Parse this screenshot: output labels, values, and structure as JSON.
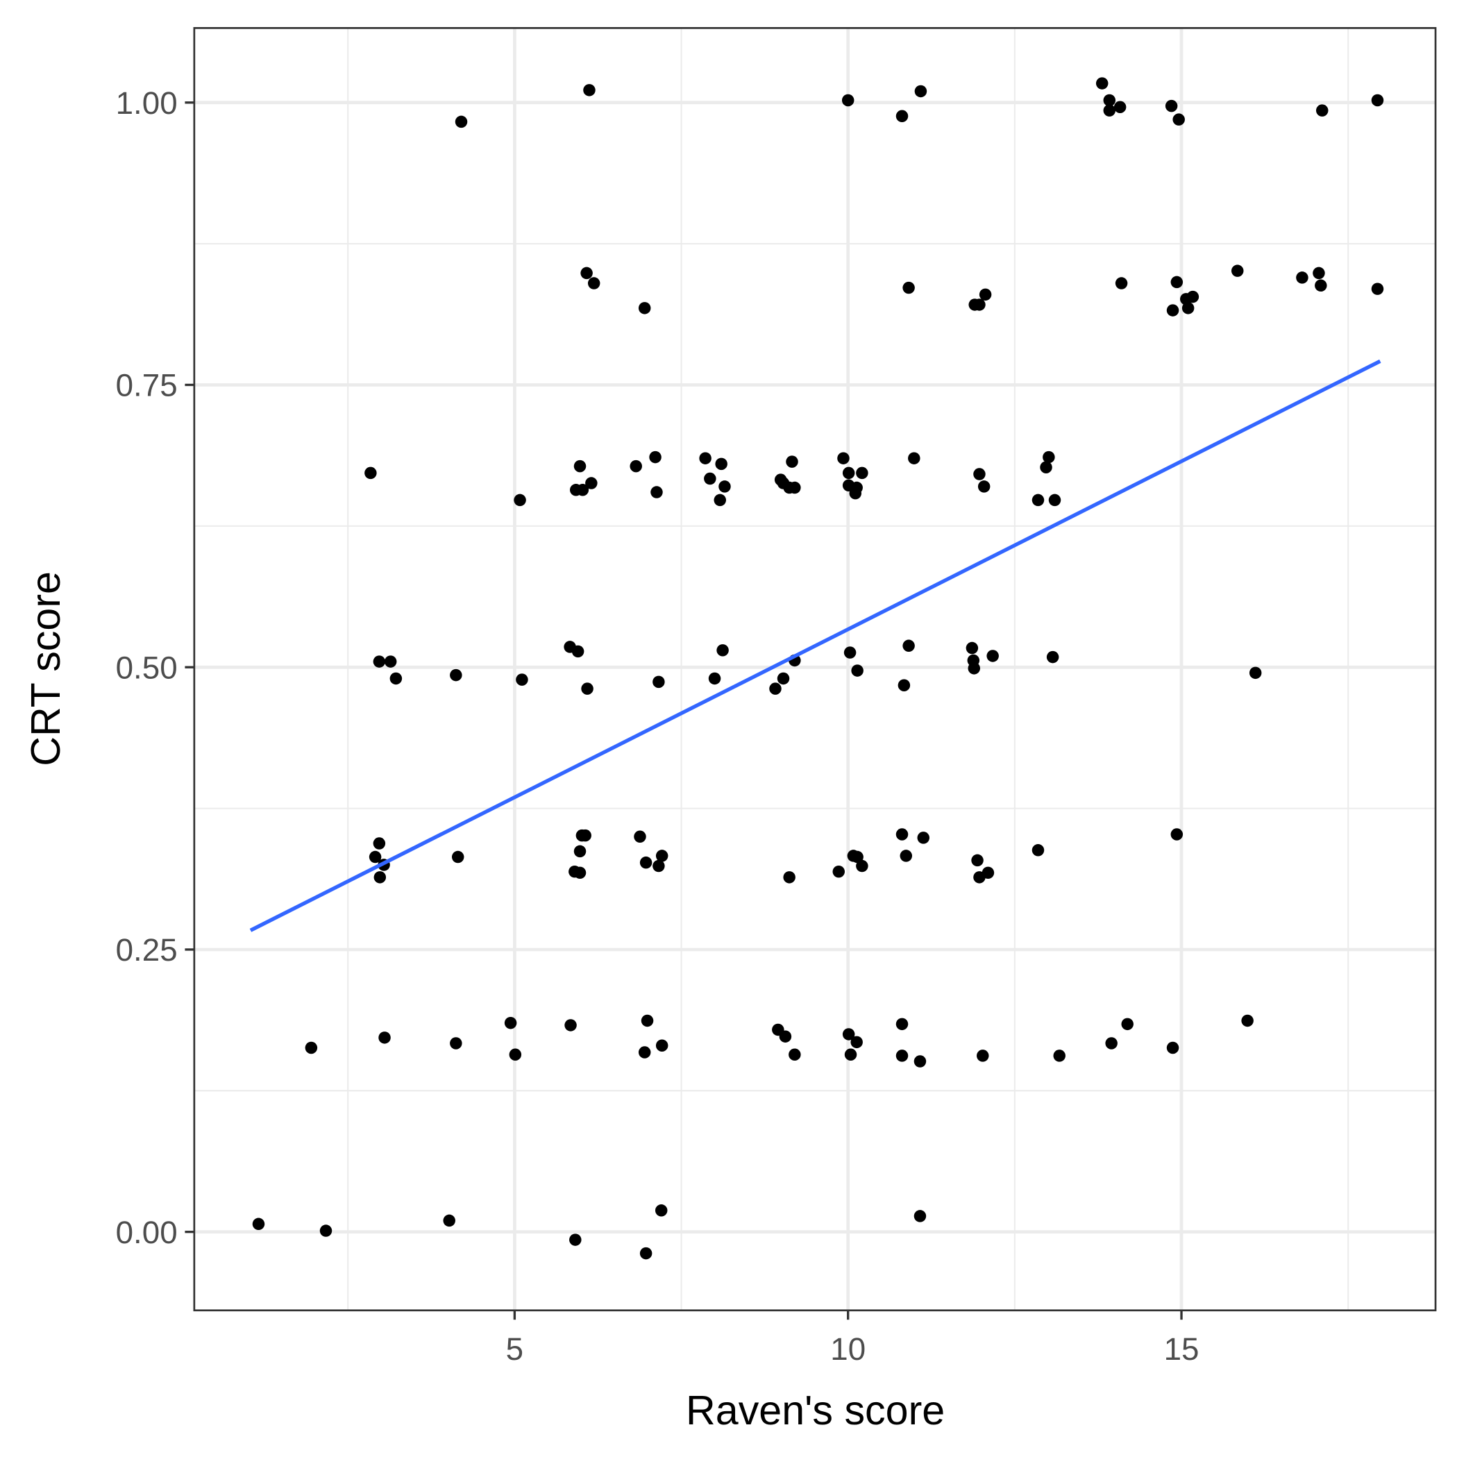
{
  "chart_data": {
    "type": "scatter",
    "x_label": "Raven's score",
    "y_label": "CRT score",
    "xlim": [
      0.196,
      18.81
    ],
    "ylim": [
      -0.0695,
      1.066
    ],
    "xticks": [
      5,
      10,
      15
    ],
    "yticks": [
      {
        "value": 0,
        "label": "0.00"
      },
      {
        "value": 0.25,
        "label": "0.25"
      },
      {
        "value": 0.5,
        "label": "0.50"
      },
      {
        "value": 0.75,
        "label": "0.75"
      },
      {
        "value": 1,
        "label": "1.00"
      }
    ],
    "x_minor_ticks": [
      2.5,
      7.5,
      12.5,
      17.5
    ],
    "y_minor_ticks": [
      0.125,
      0.375,
      0.625,
      0.875
    ],
    "grid": true,
    "point_color": "#000000",
    "x": [
      4.2,
      6.12,
      10.0,
      10.81,
      11.09,
      13.81,
      13.92,
      13.92,
      14.08,
      14.85,
      14.96,
      17.11,
      17.94,
      6.08,
      6.19,
      6.95,
      10.91,
      11.9,
      11.97,
      12.06,
      14.1,
      14.93,
      14.87,
      15.07,
      15.1,
      15.17,
      15.84,
      16.81,
      17.06,
      17.09,
      17.94,
      2.84,
      5.08,
      5.98,
      5.92,
      6.02,
      6.15,
      6.82,
      7.11,
      7.13,
      7.86,
      7.93,
      8.1,
      8.08,
      8.15,
      8.99,
      9.03,
      9.12,
      9.16,
      9.2,
      9.93,
      10.01,
      10.01,
      10.13,
      10.11,
      10.21,
      10.99,
      11.97,
      12.04,
      12.85,
      12.97,
      13.01,
      13.1,
      2.97,
      3.14,
      3.22,
      4.12,
      5.11,
      5.83,
      5.95,
      6.09,
      7.16,
      8.0,
      8.12,
      8.91,
      9.03,
      9.2,
      10.03,
      10.14,
      10.84,
      10.91,
      11.86,
      11.88,
      11.89,
      12.17,
      13.07,
      16.11,
      2.97,
      2.91,
      3.04,
      2.98,
      4.15,
      5.9,
      5.98,
      5.98,
      6.01,
      6.06,
      6.88,
      6.97,
      7.16,
      7.21,
      9.12,
      9.86,
      10.08,
      10.14,
      10.21,
      10.81,
      10.87,
      11.13,
      11.94,
      11.97,
      12.1,
      12.85,
      14.93,
      1.95,
      3.05,
      4.12,
      4.94,
      5.01,
      5.84,
      6.95,
      6.99,
      7.21,
      8.95,
      9.06,
      9.2,
      10.01,
      10.04,
      10.13,
      10.81,
      10.81,
      11.08,
      12.02,
      13.17,
      13.95,
      14.19,
      14.87,
      15.99,
      1.16,
      2.17,
      4.02,
      5.91,
      6.97,
      7.2,
      11.08
    ],
    "values": [
      0.983,
      1.011,
      1.002,
      0.988,
      1.01,
      1.017,
      1.002,
      0.993,
      0.996,
      0.997,
      0.985,
      0.993,
      1.002,
      0.849,
      0.84,
      0.818,
      0.836,
      0.821,
      0.821,
      0.83,
      0.84,
      0.841,
      0.816,
      0.826,
      0.818,
      0.828,
      0.851,
      0.845,
      0.849,
      0.838,
      0.835,
      0.672,
      0.648,
      0.678,
      0.657,
      0.657,
      0.663,
      0.678,
      0.686,
      0.655,
      0.685,
      0.667,
      0.68,
      0.648,
      0.66,
      0.666,
      0.663,
      0.659,
      0.682,
      0.659,
      0.685,
      0.672,
      0.661,
      0.659,
      0.654,
      0.672,
      0.685,
      0.671,
      0.66,
      0.648,
      0.677,
      0.686,
      0.648,
      0.505,
      0.505,
      0.49,
      0.493,
      0.489,
      0.518,
      0.514,
      0.481,
      0.487,
      0.49,
      0.515,
      0.481,
      0.49,
      0.506,
      0.513,
      0.497,
      0.484,
      0.519,
      0.517,
      0.506,
      0.499,
      0.51,
      0.509,
      0.495,
      0.344,
      0.332,
      0.325,
      0.314,
      0.332,
      0.319,
      0.318,
      0.337,
      0.351,
      0.351,
      0.35,
      0.327,
      0.324,
      0.333,
      0.314,
      0.319,
      0.333,
      0.332,
      0.324,
      0.352,
      0.333,
      0.349,
      0.329,
      0.314,
      0.318,
      0.338,
      0.352,
      0.163,
      0.172,
      0.167,
      0.185,
      0.157,
      0.183,
      0.159,
      0.187,
      0.165,
      0.179,
      0.173,
      0.157,
      0.175,
      0.157,
      0.168,
      0.184,
      0.156,
      0.151,
      0.156,
      0.156,
      0.167,
      0.184,
      0.163,
      0.187,
      0.007,
      0.001,
      0.01,
      -0.007,
      -0.019,
      0.019,
      0.014
    ],
    "trend_line": {
      "color": "#3366ff",
      "x": [
        1.04,
        17.98
      ],
      "values": [
        0.267,
        0.771
      ]
    }
  }
}
